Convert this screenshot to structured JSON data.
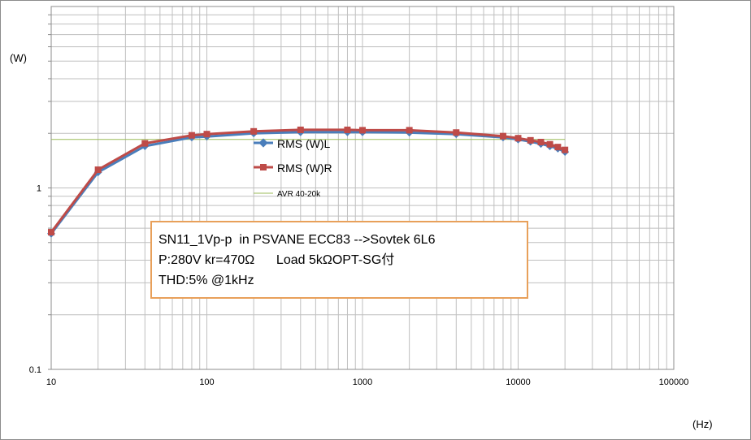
{
  "chart_data": {
    "type": "line",
    "x_scale": "log",
    "y_scale": "log",
    "xlim": [
      10,
      100000
    ],
    "ylim": [
      0.1,
      10
    ],
    "xlabel": "(Hz)",
    "ylabel": "(W)",
    "x_tick_labels": [
      "10",
      "100",
      "1000",
      "10000",
      "100000"
    ],
    "y_tick_labels": [
      "0.1",
      "1"
    ],
    "grid": true,
    "legend_position": "center-left",
    "x": [
      10,
      20,
      40,
      80,
      100,
      200,
      400,
      800,
      1000,
      2000,
      4000,
      8000,
      10000,
      12000,
      14000,
      16000,
      18000,
      20000
    ],
    "series": [
      {
        "name": "RMS (W)L",
        "color": "#4a7ebb",
        "marker": "diamond",
        "values": [
          0.56,
          1.22,
          1.7,
          1.9,
          1.92,
          2.0,
          2.03,
          2.03,
          2.03,
          2.02,
          1.98,
          1.9,
          1.85,
          1.8,
          1.75,
          1.7,
          1.65,
          1.58
        ]
      },
      {
        "name": "RMS (W)R",
        "color": "#be4b48",
        "marker": "square",
        "values": [
          0.57,
          1.26,
          1.76,
          1.95,
          1.98,
          2.05,
          2.09,
          2.09,
          2.08,
          2.08,
          2.02,
          1.93,
          1.88,
          1.83,
          1.79,
          1.74,
          1.68,
          1.62
        ]
      },
      {
        "name": "AVR 40-20k",
        "color": "#9bbb59",
        "marker": "none",
        "values_const": 1.85
      }
    ],
    "annotation_lines": [
      "SN11_1Vp-p  in PSVANE ECC83 -->Sovtek 6L6",
      "P:280V kr=470Ω      Load 5kΩOPT-SG付",
      "THD:5% @1kHz"
    ]
  }
}
